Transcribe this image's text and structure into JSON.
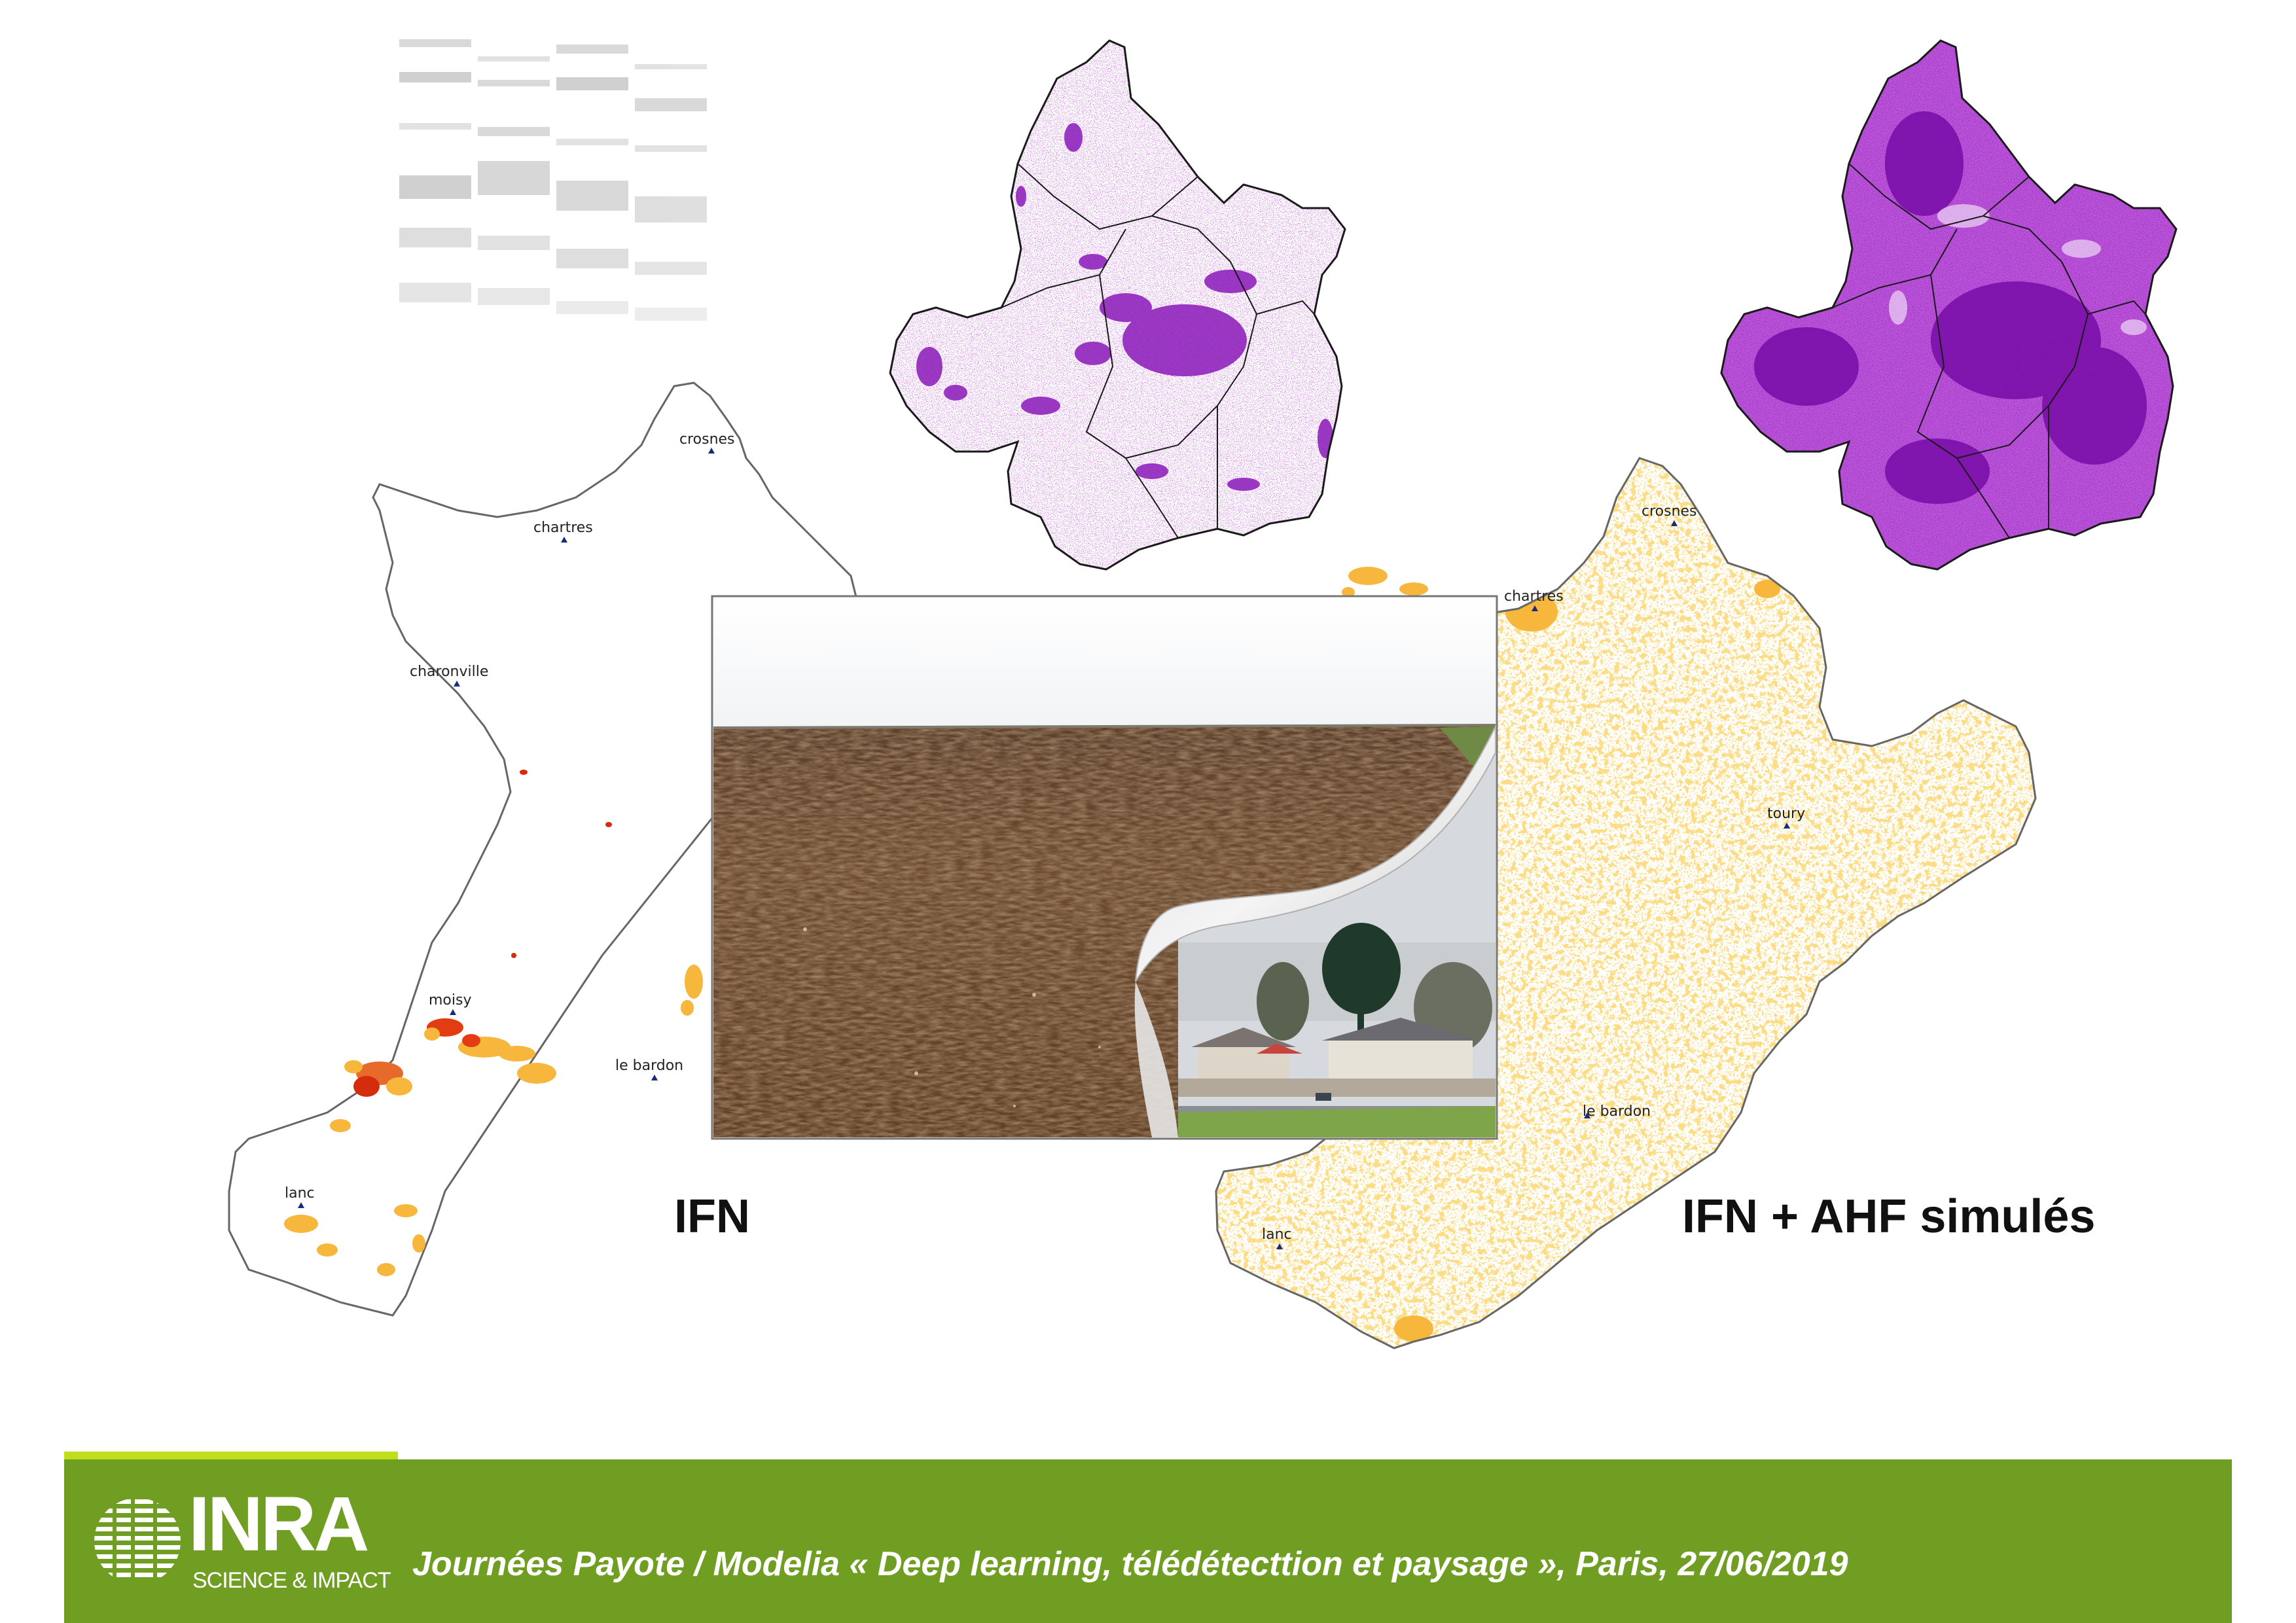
{
  "labels": {
    "ifn": "IFN",
    "ifn_ahf": "IFN + AHF simulés"
  },
  "left_map": {
    "cities": [
      "crosnes",
      "chartres",
      "charonville",
      "moisy",
      "le bardon",
      "lanc"
    ]
  },
  "right_map": {
    "cities": [
      "crosnes",
      "chartres",
      "toury",
      "le bardon",
      "lanc"
    ]
  },
  "footer": {
    "text": "Journées Payote / Modelia « Deep learning, télédétecttion et paysage », Paris, 27/06/2019",
    "logo_word": "INRA",
    "logo_tagline": "SCIENCE & IMPACT"
  },
  "colors": {
    "footer_green": "#6f9e23",
    "accent_lime": "#c2dc1e",
    "purple": "#8a18b8",
    "orange": "#f6b73c",
    "red": "#d52c0c"
  }
}
